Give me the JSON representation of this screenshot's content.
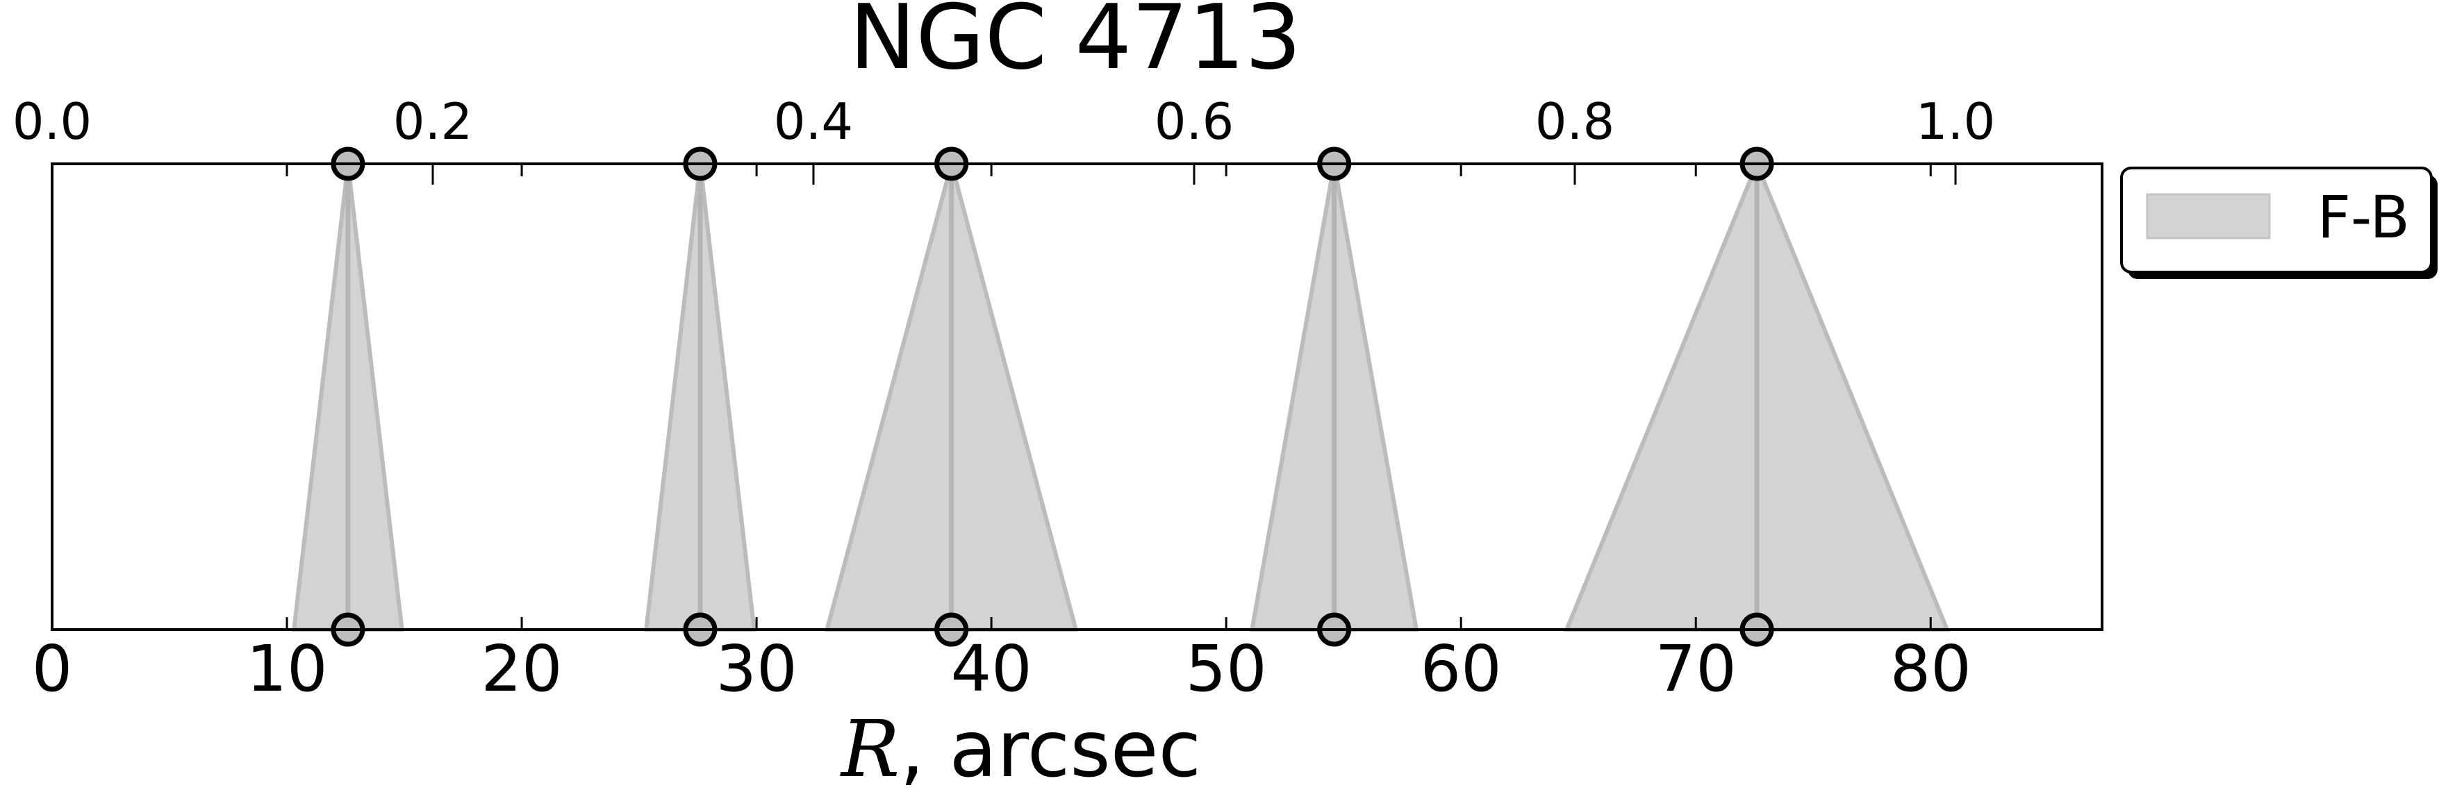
{
  "chart_data": {
    "type": "area",
    "title": "NGC 4713",
    "xlabel_var": "R",
    "xlabel_rest": ", arcsec",
    "xlim": [
      0,
      87.3
    ],
    "xticks": [
      0,
      10,
      20,
      30,
      40,
      50,
      60,
      70,
      80
    ],
    "xtick_labels": [
      "0",
      "10",
      "20",
      "30",
      "40",
      "50",
      "60",
      "70",
      "80"
    ],
    "top_xlim": [
      0,
      1.077
    ],
    "top_xticks": [
      0.0,
      0.2,
      0.4,
      0.6,
      0.8,
      1.0
    ],
    "top_xtick_labels": [
      "0.0",
      "0.2",
      "0.4",
      "0.6",
      "0.8",
      "1.0"
    ],
    "grid": false,
    "legend_position": "outside-right-top",
    "series": [
      {
        "name": "F-B",
        "color": "#d3d3d3",
        "edge_color": "#bcbcbc",
        "features": [
          {
            "center": 12.6,
            "left": 10.3,
            "right": 14.9
          },
          {
            "center": 27.6,
            "left": 25.3,
            "right": 29.9
          },
          {
            "center": 38.3,
            "left": 33.0,
            "right": 43.6
          },
          {
            "center": 54.6,
            "left": 51.1,
            "right": 58.1
          },
          {
            "center": 72.6,
            "left": 64.5,
            "right": 80.7
          }
        ]
      }
    ]
  }
}
